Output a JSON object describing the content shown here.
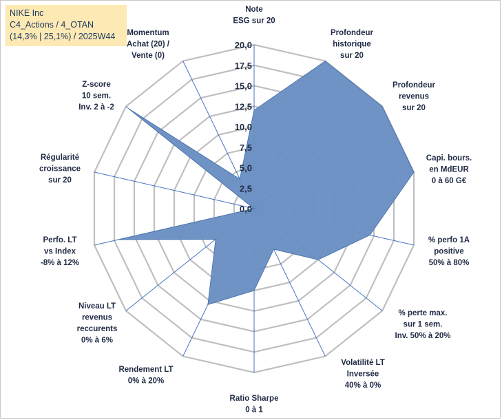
{
  "info": {
    "line1": "NIKE Inc",
    "line2": "C4_Actions / 4_OTAN",
    "line3": "(14,3% | 25,1%) / 2025W44"
  },
  "colors": {
    "fill": "#6a8fc2",
    "stroke": "#4f76b0",
    "grid": "#bfbfbf",
    "spoke": "#4472c4",
    "info_bg": "#fde9b3"
  },
  "chart_data": {
    "type": "radar",
    "rmax": 20,
    "ticks": [
      "0,0",
      "2,5",
      "5,0",
      "7,5",
      "10,0",
      "12,5",
      "15,0",
      "17,5",
      "20,0"
    ],
    "axes": [
      {
        "lines": [
          "Note",
          "ESG sur 20"
        ],
        "value": 12
      },
      {
        "lines": [
          "Profondeur",
          "historique",
          "sur 20"
        ],
        "value": 20
      },
      {
        "lines": [
          "Profondeur",
          "revenus",
          "sur 20"
        ],
        "value": 20
      },
      {
        "lines": [
          "Capi. bours.",
          "en MdEUR",
          "0 à 60 G€"
        ],
        "value": 20
      },
      {
        "lines": [
          "% perfo 1A",
          "positive",
          "50% à 80%"
        ],
        "value": 14.5
      },
      {
        "lines": [
          "% perte max.",
          "sur 1 sem.",
          "Inv. 50% à 20%"
        ],
        "value": 10
      },
      {
        "lines": [
          "Volatilité LT",
          "Inversée",
          "40% à 0%"
        ],
        "value": 5.5
      },
      {
        "lines": [
          "Ratio Sharpe",
          "0 à 1"
        ],
        "value": 10
      },
      {
        "lines": [
          "Rendement LT",
          "0% à 20%"
        ],
        "value": 13
      },
      {
        "lines": [
          "Niveau LT",
          "revenus",
          "reccurents",
          "0% à 6%"
        ],
        "value": 6
      },
      {
        "lines": [
          "Perfo. LT",
          "vs Index",
          "-8% à 12%"
        ],
        "value": 17
      },
      {
        "lines": [
          "Régularité",
          "croissance",
          "sur 20"
        ],
        "value": 0
      },
      {
        "lines": [
          "Z-score",
          "10 sem.",
          "Inv. 2 à -2"
        ],
        "value": 19.5
      },
      {
        "lines": [
          "Momentum",
          "Achat (20) /",
          "Vente (0)"
        ],
        "value": 4
      }
    ]
  }
}
